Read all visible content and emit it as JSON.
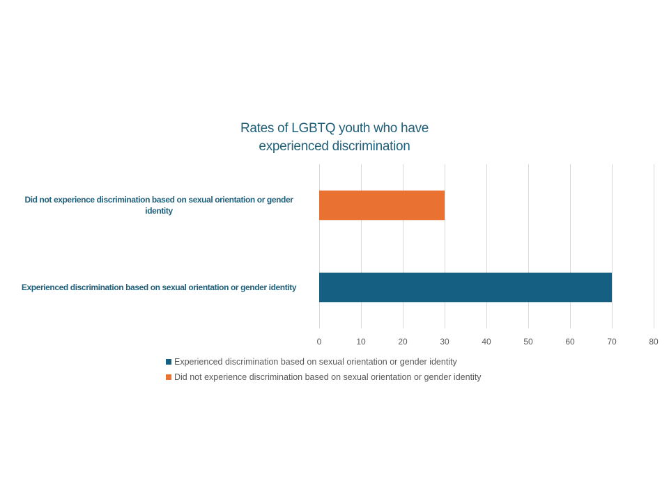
{
  "chart_data": {
    "type": "bar",
    "orientation": "horizontal",
    "title": "Rates of LGBTQ youth who have experienced discrimination",
    "title_lines": [
      "Rates of LGBTQ youth who have",
      "experienced discrimination"
    ],
    "categories": [
      "Did not experience discrimination based on sexual orientation or gender identity",
      "Experienced discrimination based on sexual orientation or gender identity"
    ],
    "category_label_lines": [
      [
        "Did not experience discrimination based on sexual orientation or gender",
        "identity"
      ],
      [
        "Experienced discrimination based on sexual orientation or gender identity"
      ]
    ],
    "values": [
      30,
      70
    ],
    "bar_colors": [
      "#e97132",
      "#156082"
    ],
    "xlim": [
      0,
      80
    ],
    "xticks": [
      0,
      10,
      20,
      30,
      40,
      50,
      60,
      70,
      80
    ],
    "grid": true,
    "legend_position": "bottom",
    "legend": [
      {
        "name": "Experienced discrimination based on sexual orientation or gender identity",
        "color": "#156082"
      },
      {
        "name": "Did not experience discrimination based on sexual orientation or gender identity",
        "color": "#e97132"
      }
    ],
    "xlabel": "",
    "ylabel": ""
  }
}
